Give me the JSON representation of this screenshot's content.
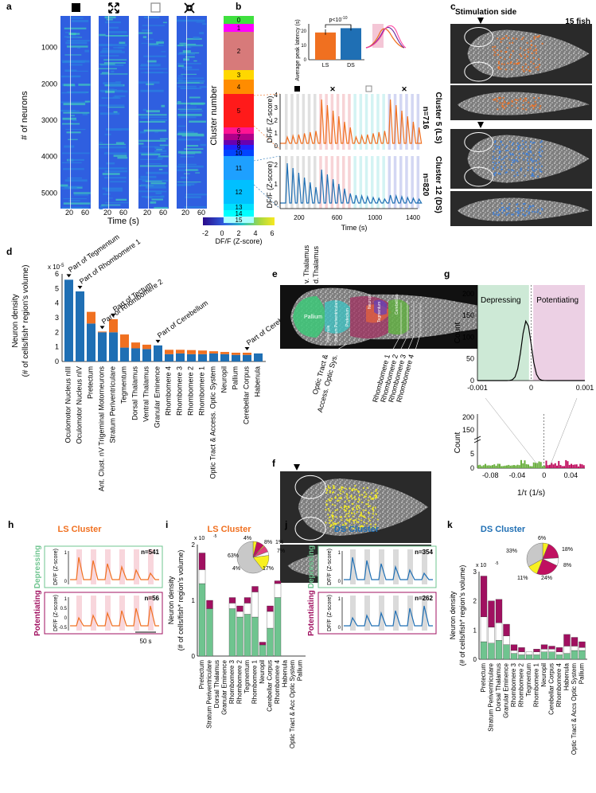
{
  "panels": {
    "a": {
      "letter": "a",
      "ylabel": "# of neurons",
      "xlabel": "Time (s)",
      "yticks": [
        "1000",
        "2000",
        "3000",
        "4000",
        "5000"
      ],
      "xticks": [
        "20",
        "60"
      ],
      "colorbar": {
        "ticks": [
          "-2",
          "0",
          "2",
          "4",
          "6"
        ],
        "label": "DF/F (Z-score)"
      }
    },
    "b": {
      "letter": "b",
      "cluster_label": "Cluster number",
      "clusters": [
        "0",
        "1",
        "2",
        "3",
        "4",
        "5",
        "6",
        "7",
        "8",
        "9",
        "10",
        "11",
        "12",
        "13",
        "14",
        "15"
      ],
      "cluster_colors": [
        "#3fe03f",
        "#ff00ff",
        "#d77a7a",
        "#ffd700",
        "#ff8c00",
        "#ff1a1a",
        "#ff1493",
        "#b0008a",
        "#6a00b0",
        "#2020ff",
        "#0044ff",
        "#1ea0ff",
        "#00c0ff",
        "#00e0ff",
        "#00ffff",
        "#aaffff"
      ],
      "bar_chart": {
        "ylabel": "Average peak latency (s)",
        "yticks": [
          "0",
          "10",
          "20"
        ],
        "pvalue": "p<10",
        "pexp": "-10",
        "categories": [
          "LS",
          "DS"
        ],
        "values": [
          19,
          22
        ]
      },
      "trace_ylabel": "DF/F (Z-score)",
      "trace_xlabel": "Time (s)",
      "trace_xticks": [
        "200",
        "400",
        "600",
        "800",
        "1000",
        "1200",
        "1400"
      ],
      "top_yticks": [
        "0",
        "1",
        "2",
        "3",
        "4"
      ],
      "bottom_yticks": [
        "0",
        "1",
        "2"
      ],
      "cluster5_label": "Cluster 5 (LS)",
      "cluster5_n": "n=716",
      "cluster12_label": "Cluster 12 (DS)",
      "cluster12_n": "n=820"
    },
    "c": {
      "letter": "c",
      "stim_side": "Stimulation side",
      "fish": "15 fish"
    },
    "d": {
      "letter": "d",
      "ylabel1": "Neuron density",
      "ylabel2": "(# of cells/fish* region's volume)",
      "exponent": "x 10",
      "exp_power": "-5",
      "yticks": [
        "0",
        "1",
        "2",
        "3",
        "4",
        "5",
        "6"
      ],
      "annotations": [
        "Part of Tegmentum",
        "Part of Rhombomere 1",
        "Part of Rhombomere 2",
        "Part of Tectum",
        "Part of Cerebellum",
        "Part of Cerebellum"
      ],
      "chart_data": {
        "type": "bar",
        "categories": [
          "Oculomotor Nucleus nIII",
          "Oculomotor Nucleus nIV",
          "Pretectum",
          "Ant. Clust. nV Trigeminal Motorneurons",
          "Stratum Periventriculare",
          "Tegmentum",
          "Dorsal Thalamus",
          "Ventral Thalamus",
          "Granular Eminence",
          "Rhombomere 4",
          "Rhombomere 3",
          "Rhombomere 2",
          "Rhombomere 1",
          "Optic Tract & Access. Optic System",
          "Neuropil",
          "Pallium",
          "Cerebellar Corpus",
          "Habenula"
        ],
        "series": [
          {
            "values": [
              5.6,
              4.8,
              2.6,
              2.0,
              2.0,
              0.95,
              0.9,
              0.85,
              1.1,
              0.5,
              0.55,
              0.5,
              0.5,
              0.55,
              0.5,
              0.45,
              0.45,
              0.55
            ]
          },
          {
            "values": [
              0,
              0,
              0.8,
              0.05,
              0.9,
              0.9,
              0.4,
              0.3,
              0.0,
              0.3,
              0.25,
              0.28,
              0.25,
              0.15,
              0.15,
              0.15,
              0.15,
              0.0
            ]
          }
        ],
        "ylim": [
          0,
          6
        ]
      }
    },
    "e": {
      "letter": "e",
      "region_labels": [
        "v. Thalamus",
        "d.Thalamus",
        "Pallium",
        "Habenula",
        "Stratum Periventriculare",
        "Pretectum",
        "Tegmentum",
        "Neuropil",
        "Cerebellum"
      ],
      "lower_labels": [
        "Optic Tract &",
        "Access. Optic Sys.",
        "Rhombomere 1",
        "Rhombomere 2",
        "Rhombomere 3",
        "Rhombomere 4"
      ]
    },
    "f": {
      "letter": "f"
    },
    "g": {
      "letter": "g",
      "ylabel": "Count",
      "xlabel": "1/τ (1/s)",
      "depressing": "Depressing",
      "potentiating": "Potentiating",
      "top_yticks": [
        "0",
        "50",
        "100",
        "150",
        "200"
      ],
      "top_xticks": [
        "-0.001",
        "0",
        "0.001"
      ],
      "bot_yticks": [
        "0",
        "5",
        "150",
        "200"
      ],
      "bot_xticks": [
        "-0.08",
        "-0.04",
        "0",
        "0.04"
      ]
    },
    "h": {
      "letter": "h",
      "title": "LS Cluster",
      "depressing": "Depressing",
      "potentiating": "Potentiating",
      "ylabel": "DF/F (Z-score)",
      "n_dep": "n=541",
      "n_pot": "n=56",
      "yticks_dep": [
        "0",
        "1"
      ],
      "yticks_pot": [
        "-0.5",
        "0",
        "0.5",
        "1"
      ],
      "scalebar": "50 s"
    },
    "i": {
      "letter": "i",
      "title": "LS Cluster",
      "ylabel1": "Neuron density",
      "ylabel2": "(# of cells/fish* region's volume)",
      "exponent": "x 10",
      "exp_power": "-5",
      "yticks": [
        "0",
        "1",
        "2"
      ],
      "pie_labels": [
        "4%",
        "8%",
        "1%",
        "7%",
        "4%",
        "17%",
        "63%"
      ],
      "chart_data": {
        "type": "bar",
        "categories": [
          "Pretectum",
          "Stratum Periventriculare",
          "Dorsal Thalamus",
          "Granular Eminence",
          "Rhombomere 3",
          "Rhombomere 2",
          "Tegmentum",
          "Rhombomere 1",
          "Neuropil",
          "Cerebellar Corpus",
          "Rhombomere 4",
          "Habenula",
          "Optic Tract & Acc Optic System",
          "Pallium"
        ],
        "series": [
          {
            "values": [
              1.3,
              0.85,
              0.0,
              0.0,
              0.85,
              0.7,
              0.75,
              0.7,
              0.2,
              0.5,
              1.05,
              0.0,
              0.0,
              0.0
            ]
          },
          {
            "values": [
              0.25,
              0.0,
              0.0,
              0.0,
              0.1,
              0.1,
              0.2,
              0.45,
              0.0,
              0.3,
              0.25,
              0.0,
              0.0,
              0.0
            ]
          },
          {
            "values": [
              0.3,
              0.15,
              0.0,
              0.0,
              0.1,
              0.1,
              0.1,
              0.1,
              0.05,
              0.1,
              0.05,
              0.0,
              0.0,
              0.0
            ]
          }
        ],
        "ylim": [
          0,
          2
        ]
      }
    },
    "j": {
      "letter": "j",
      "title": "DS Cluster",
      "depressing": "Depressing",
      "potentiating": "Potentiating",
      "ylabel": "DF/F (Z-score)",
      "n_dep": "n=354",
      "n_pot": "n=262",
      "yticks_dep": [
        "0",
        "1"
      ],
      "yticks_pot": [
        "0",
        "1"
      ]
    },
    "k": {
      "letter": "k",
      "title": "DS Cluster",
      "ylabel1": "Neuron density",
      "ylabel2": "(# of cells/fish* region's volume)",
      "exponent": "x 10",
      "exp_power": "-5",
      "yticks": [
        "0",
        "1",
        "2",
        "3"
      ],
      "pie_labels": [
        "6%",
        "18%",
        "8%",
        "24%",
        "11%",
        "33%"
      ],
      "chart_data": {
        "type": "bar",
        "categories": [
          "Pretectum",
          "Stratum Periventriculare",
          "Dorsal Thalamus",
          "Granular Eminence",
          "Rhombomere 3",
          "Rhombomere 2",
          "Tegmentum",
          "Rhombomere 1",
          "Neuropil",
          "Cerebellar Corpus",
          "Rhombomere 4",
          "Habenula",
          "Optic Tract & Accs Optic System",
          "Pallium"
        ],
        "series": [
          {
            "values": [
              0.6,
              0.55,
              0.65,
              0.5,
              0.2,
              0.15,
              0.15,
              0.15,
              0.25,
              0.25,
              0.15,
              0.2,
              0.3,
              0.3
            ]
          },
          {
            "values": [
              0.85,
              0.55,
              0.6,
              0.3,
              0.1,
              0.1,
              0.1,
              0.1,
              0.1,
              0.1,
              0.1,
              0.25,
              0.15,
              0.1
            ]
          },
          {
            "values": [
              1.4,
              0.9,
              0.8,
              0.4,
              0.2,
              0.15,
              0.0,
              0.1,
              0.15,
              0.1,
              0.15,
              0.4,
              0.3,
              0.2
            ]
          }
        ],
        "ylim": [
          0,
          3
        ]
      }
    }
  },
  "colors": {
    "ls": "#f07020",
    "ds": "#1f6fb4",
    "dep_green": "#6fc48f",
    "pot_magenta": "#a01060",
    "heat_bg": "#2f5fe0"
  }
}
